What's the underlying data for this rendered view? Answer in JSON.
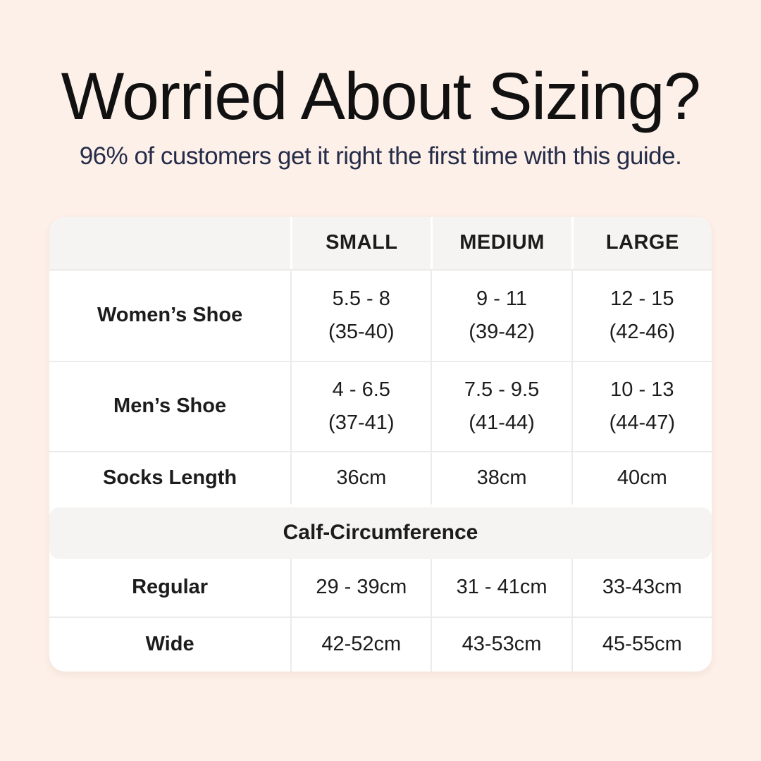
{
  "page": {
    "background_color": "#fdf0e8",
    "title": "Worried About Sizing?",
    "subtitle": "96% of customers get it right the first time with this guide.",
    "title_color": "#111111",
    "subtitle_color": "#252c49"
  },
  "table": {
    "card_color": "#ffffff",
    "header_bg_color": "#f5f4f2",
    "divider_color": "#ecebe9",
    "columns": {
      "small": "SMALL",
      "medium": "MEDIUM",
      "large": "LARGE"
    },
    "shoe_rows": [
      {
        "label": "Women’s Shoe",
        "small": "5.5 - 8\n(35-40)",
        "medium": "9 - 11\n(39-42)",
        "large": "12 - 15\n(42-46)"
      },
      {
        "label": "Men’s Shoe",
        "small": "4 - 6.5\n(37-41)",
        "medium": "7.5 - 9.5\n(41-44)",
        "large": "10 - 13\n(44-47)"
      },
      {
        "label": "Socks Length",
        "small": "36cm",
        "medium": "38cm",
        "large": "40cm"
      }
    ],
    "section_header": "Calf-Circumference",
    "calf_rows": [
      {
        "label": "Regular",
        "small": "29 - 39cm",
        "medium": "31 - 41cm",
        "large": "33-43cm"
      },
      {
        "label": "Wide",
        "small": "42-52cm",
        "medium": "43-53cm",
        "large": "45-55cm"
      }
    ]
  },
  "chart_data": {
    "type": "table",
    "title": "Worried About Sizing?",
    "subtitle": "96% of customers get it right the first time with this guide.",
    "columns": [
      "",
      "SMALL",
      "MEDIUM",
      "LARGE"
    ],
    "rows": [
      [
        "Women’s Shoe",
        "5.5 - 8 (35-40)",
        "9 - 11 (39-42)",
        "12 - 15 (42-46)"
      ],
      [
        "Men’s Shoe",
        "4 - 6.5 (37-41)",
        "7.5 - 9.5 (41-44)",
        "10 - 13 (44-47)"
      ],
      [
        "Socks Length",
        "36cm",
        "38cm",
        "40cm"
      ],
      [
        "Calf-Circumference",
        "",
        "",
        ""
      ],
      [
        "Regular",
        "29 - 39cm",
        "31 - 41cm",
        "33-43cm"
      ],
      [
        "Wide",
        "42-52cm",
        "43-53cm",
        "45-55cm"
      ]
    ]
  }
}
